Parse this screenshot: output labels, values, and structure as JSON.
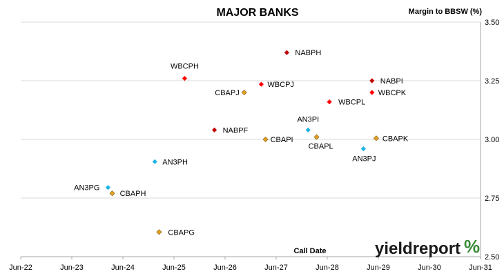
{
  "chart_data": {
    "type": "scatter",
    "title": "MAJOR BANKS",
    "xlabel": "Call Date",
    "ylabel": "Margin to BBSW (%)",
    "xlim": [
      "Jun-22",
      "Jun-31"
    ],
    "ylim": [
      2.5,
      3.5
    ],
    "x_ticks": [
      "Jun-22",
      "Jun-23",
      "Jun-24",
      "Jun-25",
      "Jun-26",
      "Jun-27",
      "Jun-28",
      "Jun-29",
      "Jun-30",
      "Jun-31"
    ],
    "y_ticks": [
      "2.50",
      "2.75",
      "3.00",
      "3.25",
      "3.50"
    ],
    "grid": true,
    "y_axis_side": "right",
    "colors": {
      "NAB": "#c00000",
      "WBC": "#ff0000",
      "CBA": "#e6a020",
      "ANZ": "#1fb4e6"
    },
    "series": [
      {
        "name": "NAB",
        "points": [
          {
            "label": "NABPH",
            "x": "2027-09",
            "y": 3.37
          },
          {
            "label": "NABPI",
            "x": "2029-05",
            "y": 3.25
          },
          {
            "label": "NABPF",
            "x": "2026-04",
            "y": 3.04
          }
        ]
      },
      {
        "name": "WBC",
        "points": [
          {
            "label": "WBCPH",
            "x": "2025-09",
            "y": 3.26
          },
          {
            "label": "WBCPJ",
            "x": "2027-03",
            "y": 3.235
          },
          {
            "label": "WBCPK",
            "x": "2029-05",
            "y": 3.2
          },
          {
            "label": "WBCPL",
            "x": "2028-07",
            "y": 3.16
          }
        ]
      },
      {
        "name": "CBA",
        "points": [
          {
            "label": "CBAPJ",
            "x": "2026-11",
            "y": 3.2
          },
          {
            "label": "CBAPI",
            "x": "2027-04",
            "y": 3.0
          },
          {
            "label": "CBAPL",
            "x": "2028-04",
            "y": 3.01
          },
          {
            "label": "CBAPK",
            "x": "2029-06",
            "y": 3.005
          },
          {
            "label": "CBAPH",
            "x": "2024-04",
            "y": 2.77
          },
          {
            "label": "CBAPG",
            "x": "2025-03",
            "y": 2.605
          }
        ]
      },
      {
        "name": "ANZ",
        "points": [
          {
            "label": "AN3PI",
            "x": "2028-02",
            "y": 3.04
          },
          {
            "label": "AN3PJ",
            "x": "2029-03",
            "y": 2.96
          },
          {
            "label": "AN3PH",
            "x": "2025-02",
            "y": 2.905
          },
          {
            "label": "AN3PG",
            "x": "2024-03",
            "y": 2.795
          }
        ]
      }
    ]
  },
  "logo": {
    "text": "yieldreport",
    "symbol": "%"
  }
}
